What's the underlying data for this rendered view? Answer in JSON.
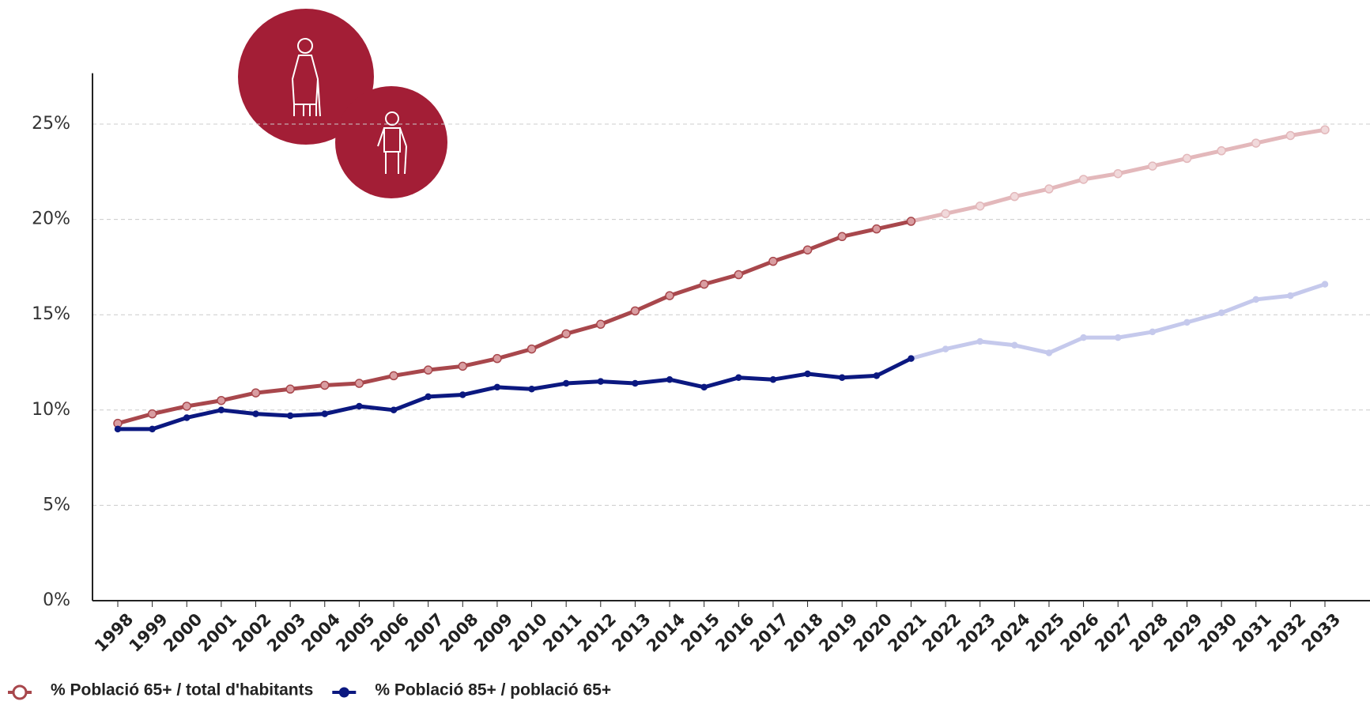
{
  "chart_data": {
    "type": "line",
    "categories": [
      "1998",
      "1999",
      "2000",
      "2001",
      "2002",
      "2003",
      "2004",
      "2005",
      "2006",
      "2007",
      "2008",
      "2009",
      "2010",
      "2011",
      "2012",
      "2013",
      "2014",
      "2015",
      "2016",
      "2017",
      "2018",
      "2019",
      "2020",
      "2021",
      "2022",
      "2023",
      "2024",
      "2025",
      "2026",
      "2027",
      "2028",
      "2029",
      "2030",
      "2031",
      "2032",
      "2033"
    ],
    "forecast_from": "2021",
    "series": [
      {
        "name": "% Població 65+ / total d'habitants",
        "color": "#a8474c",
        "forecast_color": "#e3b8bb",
        "marker": "open-circle",
        "values": [
          9.3,
          9.8,
          10.2,
          10.5,
          10.9,
          11.1,
          11.3,
          11.4,
          11.8,
          12.1,
          12.3,
          12.7,
          13.2,
          14.0,
          14.5,
          15.2,
          16.0,
          16.6,
          17.1,
          17.8,
          18.4,
          19.1,
          19.5,
          19.9,
          20.3,
          20.7,
          21.2,
          21.6,
          22.1,
          22.4,
          22.8,
          23.2,
          23.6,
          24.0,
          24.4,
          24.7
        ]
      },
      {
        "name": "% Població 85+ / població 65+",
        "color": "#0b1880",
        "forecast_color": "#c5c9ec",
        "marker": "circle",
        "values": [
          9.0,
          9.0,
          9.6,
          10.0,
          9.8,
          9.7,
          9.8,
          10.2,
          10.0,
          10.7,
          10.8,
          11.2,
          11.1,
          11.4,
          11.5,
          11.4,
          11.6,
          11.2,
          11.7,
          11.6,
          11.9,
          11.7,
          11.8,
          12.7,
          13.2,
          13.6,
          13.4,
          13.0,
          13.8,
          13.8,
          14.1,
          14.6,
          15.1,
          15.8,
          16.0,
          16.6
        ]
      }
    ],
    "ylim": [
      0,
      26.3
    ],
    "yticks": [
      {
        "value": 0,
        "label": "0%"
      },
      {
        "value": 5,
        "label": "5%"
      },
      {
        "value": 10,
        "label": "10%"
      },
      {
        "value": 15,
        "label": "15%"
      },
      {
        "value": 20,
        "label": "20%"
      },
      {
        "value": 25,
        "label": "25%"
      }
    ],
    "grid": true
  }
}
